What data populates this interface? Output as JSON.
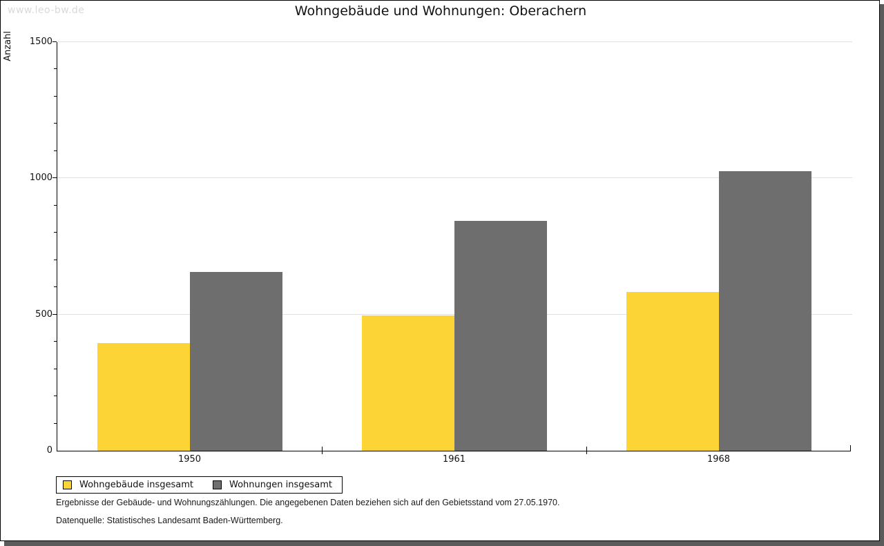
{
  "watermark": "www.leo-bw.de",
  "title": "Wohngebäude und Wohnungen: Oberachern",
  "chart_data": {
    "type": "bar",
    "title": "Wohngebäude und Wohnungen: Oberachern",
    "categories": [
      "1950",
      "1961",
      "1968"
    ],
    "series": [
      {
        "name": "Wohngebäude insgesamt",
        "color": "#FCD435",
        "values": [
          395,
          496,
          583
        ]
      },
      {
        "name": "Wohnungen insgesamt",
        "color": "#6E6E6E",
        "values": [
          655,
          844,
          1025
        ]
      }
    ],
    "xlabel": "",
    "ylabel": "Anzahl",
    "ylim": [
      0,
      1500
    ],
    "yticks": [
      0,
      500,
      1000,
      1500
    ],
    "minor_tick_step": 100,
    "grid": true,
    "legend_position": "bottom-left"
  },
  "footnotes": [
    "Ergebnisse der Gebäude- und Wohnungszählungen. Die angegebenen Daten beziehen sich auf den Gebietsstand vom 27.05.1970.",
    "Datenquelle: Statistisches Landesamt Baden-Württemberg."
  ],
  "colors": {
    "grid": "#E0E0E0",
    "axis": "#000000",
    "watermark": "#D9D9D9",
    "frame_shadow": "#5B5B5B"
  }
}
